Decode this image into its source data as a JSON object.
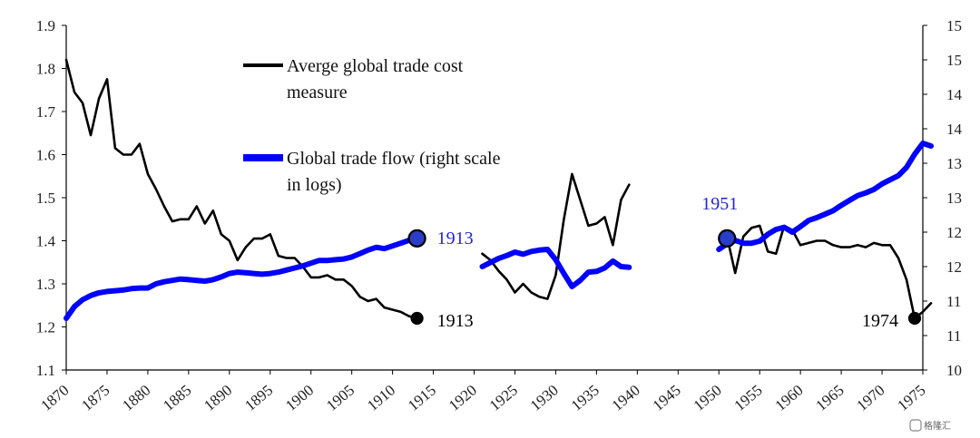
{
  "chart_data": {
    "type": "line",
    "x_range": [
      1870,
      1976
    ],
    "x_tick_labels": [
      "1870",
      "1875",
      "1880",
      "1885",
      "1890",
      "1895",
      "1900",
      "1905",
      "1910",
      "1915",
      "1920",
      "1925",
      "1930",
      "1935",
      "1940",
      "1945",
      "1950",
      "1955",
      "1960",
      "1965",
      "1970",
      "1975"
    ],
    "left_axis": {
      "ylim": [
        1.1,
        1.9
      ],
      "tick_labels": [
        "1.1",
        "1.2",
        "1.3",
        "1.4",
        "1.5",
        "1.6",
        "1.7",
        "1.8",
        "1.9"
      ]
    },
    "right_axis": {
      "log_scale": true,
      "ylim": [
        10,
        15
      ],
      "tick_labels": [
        "10",
        "11",
        "11",
        "12",
        "12",
        "13",
        "13",
        "14",
        "14",
        "15",
        "15"
      ]
    },
    "grid": false,
    "legend_position": "top-center",
    "series": [
      {
        "name": "Averge global trade cost measure",
        "axis": "left",
        "color": "#000000",
        "segments": [
          [
            [
              1870,
              1.82
            ],
            [
              1871,
              1.745
            ],
            [
              1872,
              1.72
            ],
            [
              1873,
              1.645
            ],
            [
              1874,
              1.73
            ],
            [
              1875,
              1.775
            ],
            [
              1876,
              1.615
            ],
            [
              1877,
              1.6
            ],
            [
              1878,
              1.6
            ],
            [
              1879,
              1.625
            ],
            [
              1880,
              1.555
            ],
            [
              1881,
              1.52
            ],
            [
              1882,
              1.48
            ],
            [
              1883,
              1.445
            ],
            [
              1884,
              1.45
            ],
            [
              1885,
              1.45
            ],
            [
              1886,
              1.48
            ],
            [
              1887,
              1.44
            ],
            [
              1888,
              1.47
            ],
            [
              1889,
              1.415
            ],
            [
              1890,
              1.4
            ],
            [
              1891,
              1.355
            ],
            [
              1892,
              1.385
            ],
            [
              1893,
              1.405
            ],
            [
              1894,
              1.405
            ],
            [
              1895,
              1.415
            ],
            [
              1896,
              1.365
            ],
            [
              1897,
              1.36
            ],
            [
              1898,
              1.36
            ],
            [
              1899,
              1.34
            ],
            [
              1900,
              1.315
            ],
            [
              1901,
              1.315
            ],
            [
              1902,
              1.32
            ],
            [
              1903,
              1.31
            ],
            [
              1904,
              1.31
            ],
            [
              1905,
              1.295
            ],
            [
              1906,
              1.27
            ],
            [
              1907,
              1.26
            ],
            [
              1908,
              1.265
            ],
            [
              1909,
              1.245
            ],
            [
              1910,
              1.24
            ],
            [
              1911,
              1.235
            ],
            [
              1912,
              1.225
            ],
            [
              1913,
              1.22
            ]
          ],
          [
            [
              1921,
              1.37
            ],
            [
              1922,
              1.355
            ],
            [
              1923,
              1.33
            ],
            [
              1924,
              1.31
            ],
            [
              1925,
              1.28
            ],
            [
              1926,
              1.3
            ],
            [
              1927,
              1.28
            ],
            [
              1928,
              1.27
            ],
            [
              1929,
              1.265
            ],
            [
              1930,
              1.32
            ],
            [
              1931,
              1.45
            ],
            [
              1932,
              1.555
            ],
            [
              1933,
              1.495
            ],
            [
              1934,
              1.435
            ],
            [
              1935,
              1.44
            ],
            [
              1936,
              1.455
            ],
            [
              1937,
              1.39
            ],
            [
              1938,
              1.495
            ],
            [
              1939,
              1.53
            ]
          ],
          [
            [
              1951,
              1.41
            ],
            [
              1952,
              1.325
            ],
            [
              1953,
              1.41
            ],
            [
              1954,
              1.43
            ],
            [
              1955,
              1.435
            ],
            [
              1956,
              1.375
            ],
            [
              1957,
              1.37
            ],
            [
              1958,
              1.435
            ],
            [
              1959,
              1.425
            ],
            [
              1960,
              1.39
            ],
            [
              1961,
              1.395
            ],
            [
              1962,
              1.4
            ],
            [
              1963,
              1.4
            ],
            [
              1964,
              1.39
            ],
            [
              1965,
              1.385
            ],
            [
              1966,
              1.385
            ],
            [
              1967,
              1.39
            ],
            [
              1968,
              1.385
            ],
            [
              1969,
              1.395
            ],
            [
              1970,
              1.39
            ],
            [
              1971,
              1.39
            ],
            [
              1972,
              1.36
            ],
            [
              1973,
              1.31
            ],
            [
              1974,
              1.22
            ],
            [
              1975,
              1.235
            ],
            [
              1976,
              1.255
            ]
          ]
        ]
      },
      {
        "name": "Global trade flow (right scale in logs)",
        "axis": "right",
        "color": "#0000ff",
        "segments": [
          [
            [
              1870,
              10.75
            ],
            [
              1871,
              10.92
            ],
            [
              1872,
              11.02
            ],
            [
              1873,
              11.08
            ],
            [
              1874,
              11.12
            ],
            [
              1875,
              11.14
            ],
            [
              1876,
              11.15
            ],
            [
              1877,
              11.16
            ],
            [
              1878,
              11.18
            ],
            [
              1879,
              11.19
            ],
            [
              1880,
              11.19
            ],
            [
              1881,
              11.25
            ],
            [
              1882,
              11.28
            ],
            [
              1883,
              11.3
            ],
            [
              1884,
              11.32
            ],
            [
              1885,
              11.31
            ],
            [
              1886,
              11.3
            ],
            [
              1887,
              11.29
            ],
            [
              1888,
              11.31
            ],
            [
              1889,
              11.35
            ],
            [
              1890,
              11.4
            ],
            [
              1891,
              11.42
            ],
            [
              1892,
              11.41
            ],
            [
              1893,
              11.4
            ],
            [
              1894,
              11.39
            ],
            [
              1895,
              11.4
            ],
            [
              1896,
              11.42
            ],
            [
              1897,
              11.45
            ],
            [
              1898,
              11.48
            ],
            [
              1899,
              11.51
            ],
            [
              1900,
              11.55
            ],
            [
              1901,
              11.59
            ],
            [
              1902,
              11.59
            ],
            [
              1903,
              11.6
            ],
            [
              1904,
              11.61
            ],
            [
              1905,
              11.64
            ],
            [
              1906,
              11.69
            ],
            [
              1907,
              11.74
            ],
            [
              1908,
              11.78
            ],
            [
              1909,
              11.76
            ],
            [
              1910,
              11.8
            ],
            [
              1911,
              11.84
            ],
            [
              1912,
              11.88
            ],
            [
              1913,
              11.91
            ]
          ],
          [
            [
              1921,
              11.5
            ],
            [
              1922,
              11.56
            ],
            [
              1923,
              11.62
            ],
            [
              1924,
              11.66
            ],
            [
              1925,
              11.71
            ],
            [
              1926,
              11.68
            ],
            [
              1927,
              11.72
            ],
            [
              1928,
              11.74
            ],
            [
              1929,
              11.75
            ],
            [
              1930,
              11.6
            ],
            [
              1931,
              11.4
            ],
            [
              1932,
              11.21
            ],
            [
              1933,
              11.3
            ],
            [
              1934,
              11.42
            ],
            [
              1935,
              11.43
            ],
            [
              1936,
              11.48
            ],
            [
              1937,
              11.58
            ],
            [
              1938,
              11.5
            ],
            [
              1939,
              11.49
            ]
          ],
          [
            [
              1950,
              11.75
            ],
            [
              1951,
              11.83
            ],
            [
              1952,
              11.88
            ],
            [
              1953,
              11.84
            ],
            [
              1954,
              11.84
            ],
            [
              1955,
              11.87
            ],
            [
              1956,
              11.97
            ],
            [
              1957,
              12.04
            ],
            [
              1958,
              12.07
            ],
            [
              1959,
              12.0
            ],
            [
              1960,
              12.08
            ],
            [
              1961,
              12.17
            ],
            [
              1962,
              12.21
            ],
            [
              1963,
              12.26
            ],
            [
              1964,
              12.31
            ],
            [
              1965,
              12.39
            ],
            [
              1966,
              12.46
            ],
            [
              1967,
              12.53
            ],
            [
              1968,
              12.57
            ],
            [
              1969,
              12.62
            ],
            [
              1970,
              12.7
            ],
            [
              1971,
              12.76
            ],
            [
              1972,
              12.82
            ],
            [
              1973,
              12.94
            ],
            [
              1974,
              13.13
            ],
            [
              1975,
              13.29
            ],
            [
              1976,
              13.25
            ]
          ]
        ]
      }
    ],
    "annotations": [
      {
        "text": "1913",
        "color": "#000000",
        "x": 1913,
        "y": 1.22,
        "axis": "left"
      },
      {
        "text": "1913",
        "color": "#2222dd",
        "x": 1913,
        "y": 11.91,
        "axis": "right"
      },
      {
        "text": "1951",
        "color": "#2222dd",
        "x": 1951,
        "y": 11.91,
        "axis": "right"
      },
      {
        "text": "1974",
        "color": "#000000",
        "x": 1974,
        "y": 1.22,
        "axis": "left"
      }
    ]
  },
  "watermark": "格隆汇"
}
